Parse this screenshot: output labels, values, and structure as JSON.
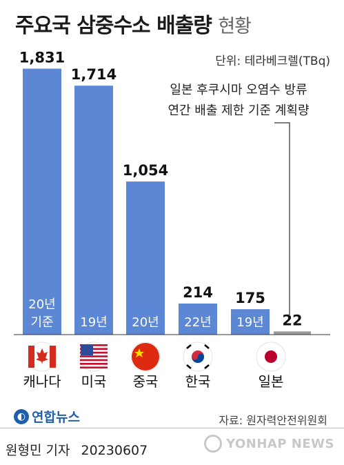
{
  "header": {
    "title": "주요국 삼중수소 배출량",
    "subtitle": "현황",
    "unit": "단위: 테라베크렐(TBq)"
  },
  "note": {
    "line1": "일본 후쿠시마 오염수 방류",
    "line2": "연간 배출 제한 기준 계획량"
  },
  "chart_data": {
    "type": "bar",
    "categories": [
      "캐나다",
      "미국",
      "중국",
      "한국",
      "일본"
    ],
    "values": [
      1831,
      1714,
      1054,
      214,
      22
    ],
    "value_labels": [
      "1,831",
      "1,714",
      "1,054",
      "214",
      "22"
    ],
    "year_labels": [
      [
        "20년",
        "기준"
      ],
      [
        "19년"
      ],
      [
        "20년"
      ],
      [
        "22년"
      ],
      [
        "19년"
      ]
    ],
    "extra_bar": {
      "value": 175,
      "label": "175",
      "year_label": "19년"
    },
    "ylim": [
      0,
      1900
    ],
    "colors": {
      "bar": "#5b87d4",
      "japan_bar": "#9a9a9a",
      "year_label": "#ffffff"
    }
  },
  "footer": {
    "logo": "연합뉴스",
    "source": "자료: 원자력안전위원회",
    "reporter": "원형민 기자",
    "date": "20230607",
    "watermark": "YONHAP NEWS"
  }
}
